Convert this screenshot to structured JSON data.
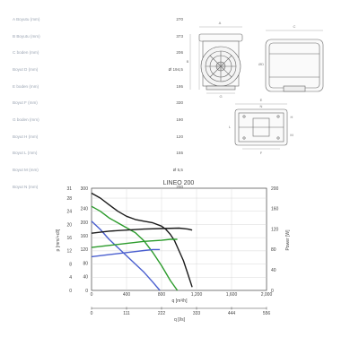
{
  "spec": {
    "rows": [
      {
        "label": "A Boyutu (mm)",
        "value": "270"
      },
      {
        "label": "B Boyutu (mm)",
        "value": "373"
      },
      {
        "label": "C boden (mm)",
        "value": "206"
      },
      {
        "label": "Boyut D (mm)",
        "value": "Ø 194,5"
      },
      {
        "label": "E boden (mm)",
        "value": "195"
      },
      {
        "label": "Boyut F (mm)",
        "value": "330"
      },
      {
        "label": "G boden (mm)",
        "value": "190"
      },
      {
        "label": "Boyut H (mm)",
        "value": "120"
      },
      {
        "label": "Boyut L (mm)",
        "value": "155"
      },
      {
        "label": "Boyut M (mm)",
        "value": "Ø 5,5"
      },
      {
        "label": "Boyut N (mm)",
        "value": "200"
      }
    ]
  },
  "drawings": {
    "front_labels": [
      "A",
      "B",
      "G"
    ],
    "side_labels": [
      "C",
      "ØD"
    ],
    "bottom_labels": [
      "E",
      "N",
      "F",
      "L",
      "H",
      "M"
    ]
  },
  "chart_data": {
    "type": "line",
    "title": "LINEO 200",
    "xlabel": "q [m³/h]",
    "ylabel": "p [mm/+c8]",
    "y2label": "Power [W]",
    "x2label": "q [l/s]",
    "xlim": [
      0,
      2000
    ],
    "ylim": [
      0,
      31
    ],
    "y2lim": [
      0,
      200
    ],
    "x_ticks": [
      "0",
      "400",
      "800",
      "1,200",
      "1,600",
      "2,000"
    ],
    "y_ticks": [
      "0",
      "4",
      "8",
      "12",
      "16",
      "20",
      "24",
      "28",
      "31"
    ],
    "y_ticks_pa": [
      "0",
      "40",
      "80",
      "120",
      "160",
      "200",
      "240",
      "300"
    ],
    "y2_ticks": [
      "0",
      "40",
      "80",
      "120",
      "160",
      "200"
    ],
    "x2_ticks": [
      "0",
      "111",
      "222",
      "333",
      "444",
      "556"
    ],
    "grid": true,
    "series": [
      {
        "color": "#1a1a1a",
        "kind": "pressure",
        "x": [
          0,
          100,
          200,
          300,
          400,
          500,
          600,
          700,
          800,
          850,
          900,
          950,
          1000,
          1050,
          1100,
          1150
        ],
        "y": [
          29.5,
          28,
          26,
          24,
          22.5,
          21.5,
          21,
          20.5,
          19.5,
          18.5,
          17,
          15,
          12,
          9,
          5,
          1
        ]
      },
      {
        "color": "#2b9b2b",
        "kind": "pressure",
        "x": [
          0,
          100,
          200,
          300,
          400,
          500,
          600,
          700,
          800,
          900,
          980
        ],
        "y": [
          25.5,
          24,
          22,
          20.5,
          19,
          17.5,
          15,
          11.5,
          7.5,
          3,
          0
        ]
      },
      {
        "color": "#4a5fcf",
        "kind": "pressure",
        "x": [
          0,
          100,
          200,
          300,
          400,
          500,
          600,
          700,
          780
        ],
        "y": [
          21,
          18.5,
          15.5,
          13,
          10.5,
          8,
          5.5,
          2.5,
          0
        ]
      },
      {
        "color": "#1a1a1a",
        "kind": "power",
        "x": [
          0,
          200,
          400,
          600,
          800,
          1000,
          1100,
          1150
        ],
        "y": [
          112,
          116,
          118,
          120,
          121,
          122,
          120,
          118
        ]
      },
      {
        "color": "#2b9b2b",
        "kind": "power",
        "x": [
          0,
          200,
          400,
          600,
          800,
          900,
          980
        ],
        "y": [
          84,
          88,
          92,
          96,
          98,
          100,
          100
        ]
      },
      {
        "color": "#4a5fcf",
        "kind": "power",
        "x": [
          0,
          200,
          400,
          600,
          700,
          780
        ],
        "y": [
          66,
          70,
          74,
          78,
          80,
          80
        ]
      }
    ]
  }
}
